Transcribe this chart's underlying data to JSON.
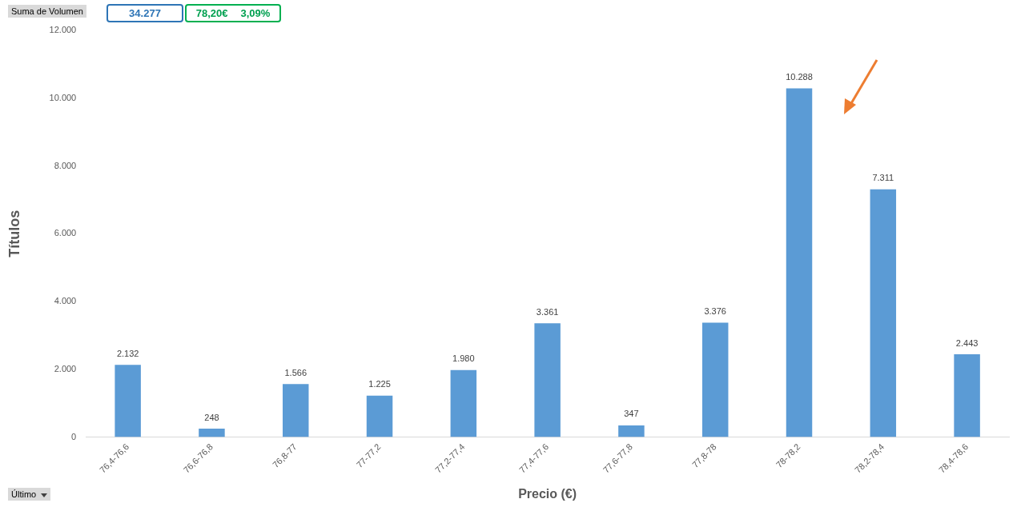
{
  "chart_data": {
    "type": "bar",
    "xlabel": "Precio (€)",
    "ylabel": "Títulos",
    "categories": [
      "76,4-76,6",
      "76,6-76,8",
      "76,8-77",
      "77-77,2",
      "77,2-77,4",
      "77,4-77,6",
      "77,6-77,8",
      "77,8-78",
      "78-78,2",
      "78,2-78,4",
      "78,4-78,6"
    ],
    "values": [
      2132,
      248,
      1566,
      1225,
      1980,
      3361,
      347,
      3376,
      10288,
      7311,
      2443
    ],
    "value_labels": [
      "2.132",
      "248",
      "1.566",
      "1.225",
      "1.980",
      "3.361",
      "347",
      "3.376",
      "10.288",
      "7.311",
      "2.443"
    ],
    "color": "#5b9bd5",
    "ylim": [
      0,
      12000
    ],
    "yticks": [
      {
        "value": 0,
        "label": "0"
      },
      {
        "value": 2000,
        "label": "2.000"
      },
      {
        "value": 4000,
        "label": "4.000"
      },
      {
        "value": 6000,
        "label": "6.000"
      },
      {
        "value": 8000,
        "label": "8.000"
      },
      {
        "value": 10000,
        "label": "10.000"
      },
      {
        "value": 12000,
        "label": "12.000"
      }
    ],
    "annotations": [
      "Suma de Volumen",
      "34.277",
      "78,20€",
      "3,09%",
      "Último"
    ]
  }
}
